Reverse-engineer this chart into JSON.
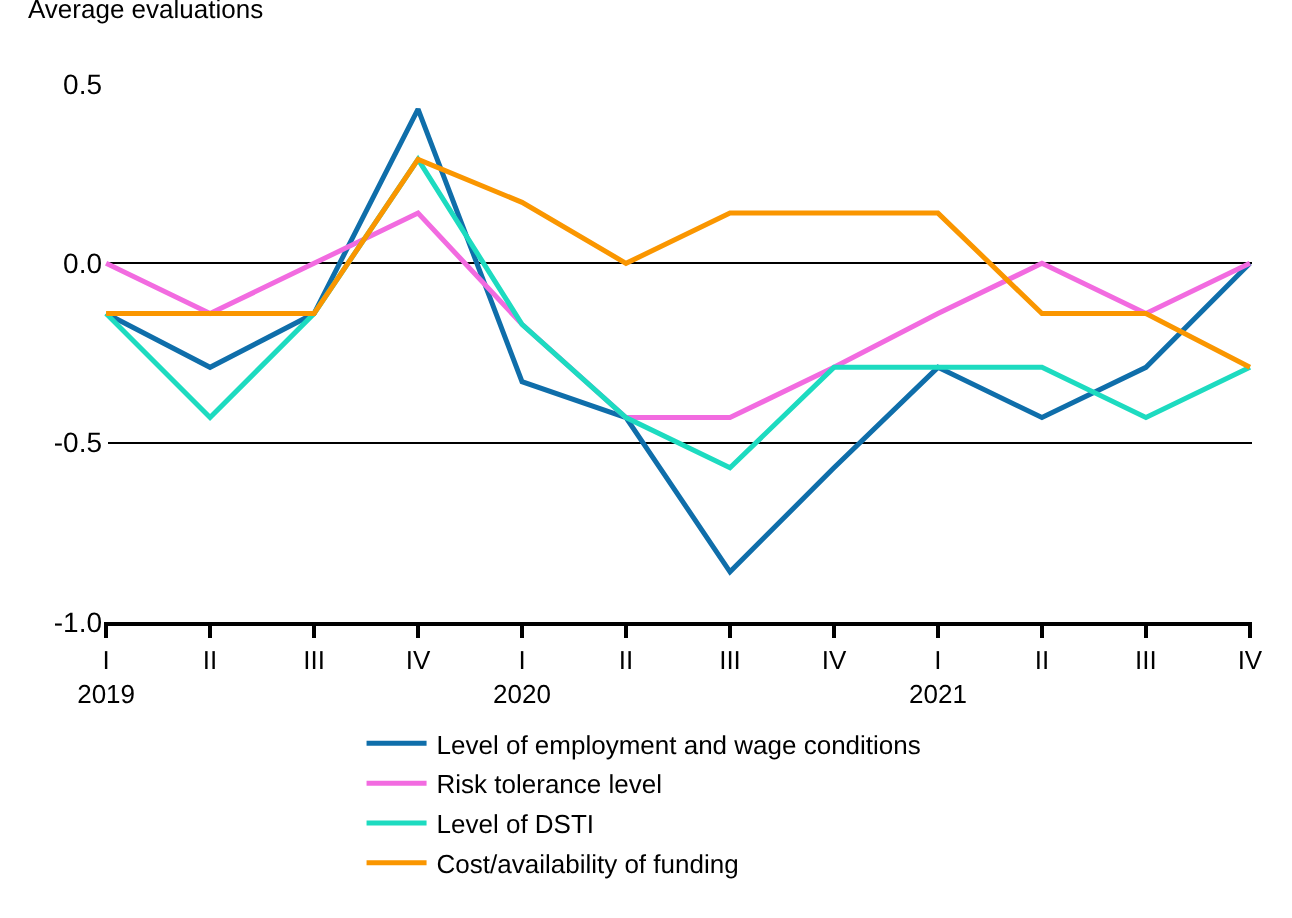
{
  "chart_data": {
    "type": "line",
    "ylabel": "Average evaluations",
    "categories": [
      "I\n2019",
      "II",
      "III",
      "IV",
      "I\n2020",
      "II",
      "III",
      "IV",
      "I\n2021",
      "II",
      "III",
      "IV"
    ],
    "series": [
      {
        "name": "Level of employment and wage conditions",
        "color": "#0f6eaa",
        "values": [
          -0.14,
          -0.29,
          -0.14,
          0.43,
          -0.33,
          -0.43,
          -0.86,
          -0.57,
          -0.29,
          -0.43,
          -0.29,
          0
        ]
      },
      {
        "name": "Risk tolerance level",
        "color": "#f26be0",
        "values": [
          0,
          -0.14,
          0,
          0.14,
          -0.17,
          -0.43,
          -0.43,
          -0.29,
          -0.14,
          0,
          -0.14,
          0
        ]
      },
      {
        "name": "Level of DSTI",
        "color": "#1ddbc0",
        "values": [
          -0.14,
          -0.43,
          -0.14,
          0.29,
          -0.17,
          -0.43,
          -0.57,
          -0.29,
          -0.29,
          -0.29,
          -0.43,
          -0.29
        ]
      },
      {
        "name": "Cost/availability of funding",
        "color": "#fa9600",
        "values": [
          -0.14,
          -0.14,
          -0.14,
          0.29,
          0.17,
          0,
          0.14,
          0.14,
          0.14,
          -0.14,
          -0.14,
          -0.29
        ]
      }
    ],
    "ylim": [
      -1.0,
      0.5
    ],
    "yticks": [
      {
        "value": -1.0,
        "label": "-1.0"
      },
      {
        "value": -0.5,
        "label": "-0.5"
      },
      {
        "value": 0,
        "label": "0.0"
      },
      {
        "value": 0.5,
        "label": "0.5"
      }
    ],
    "grid": "y",
    "legend": "bottom",
    "marker": "none",
    "line_style": "solid"
  }
}
